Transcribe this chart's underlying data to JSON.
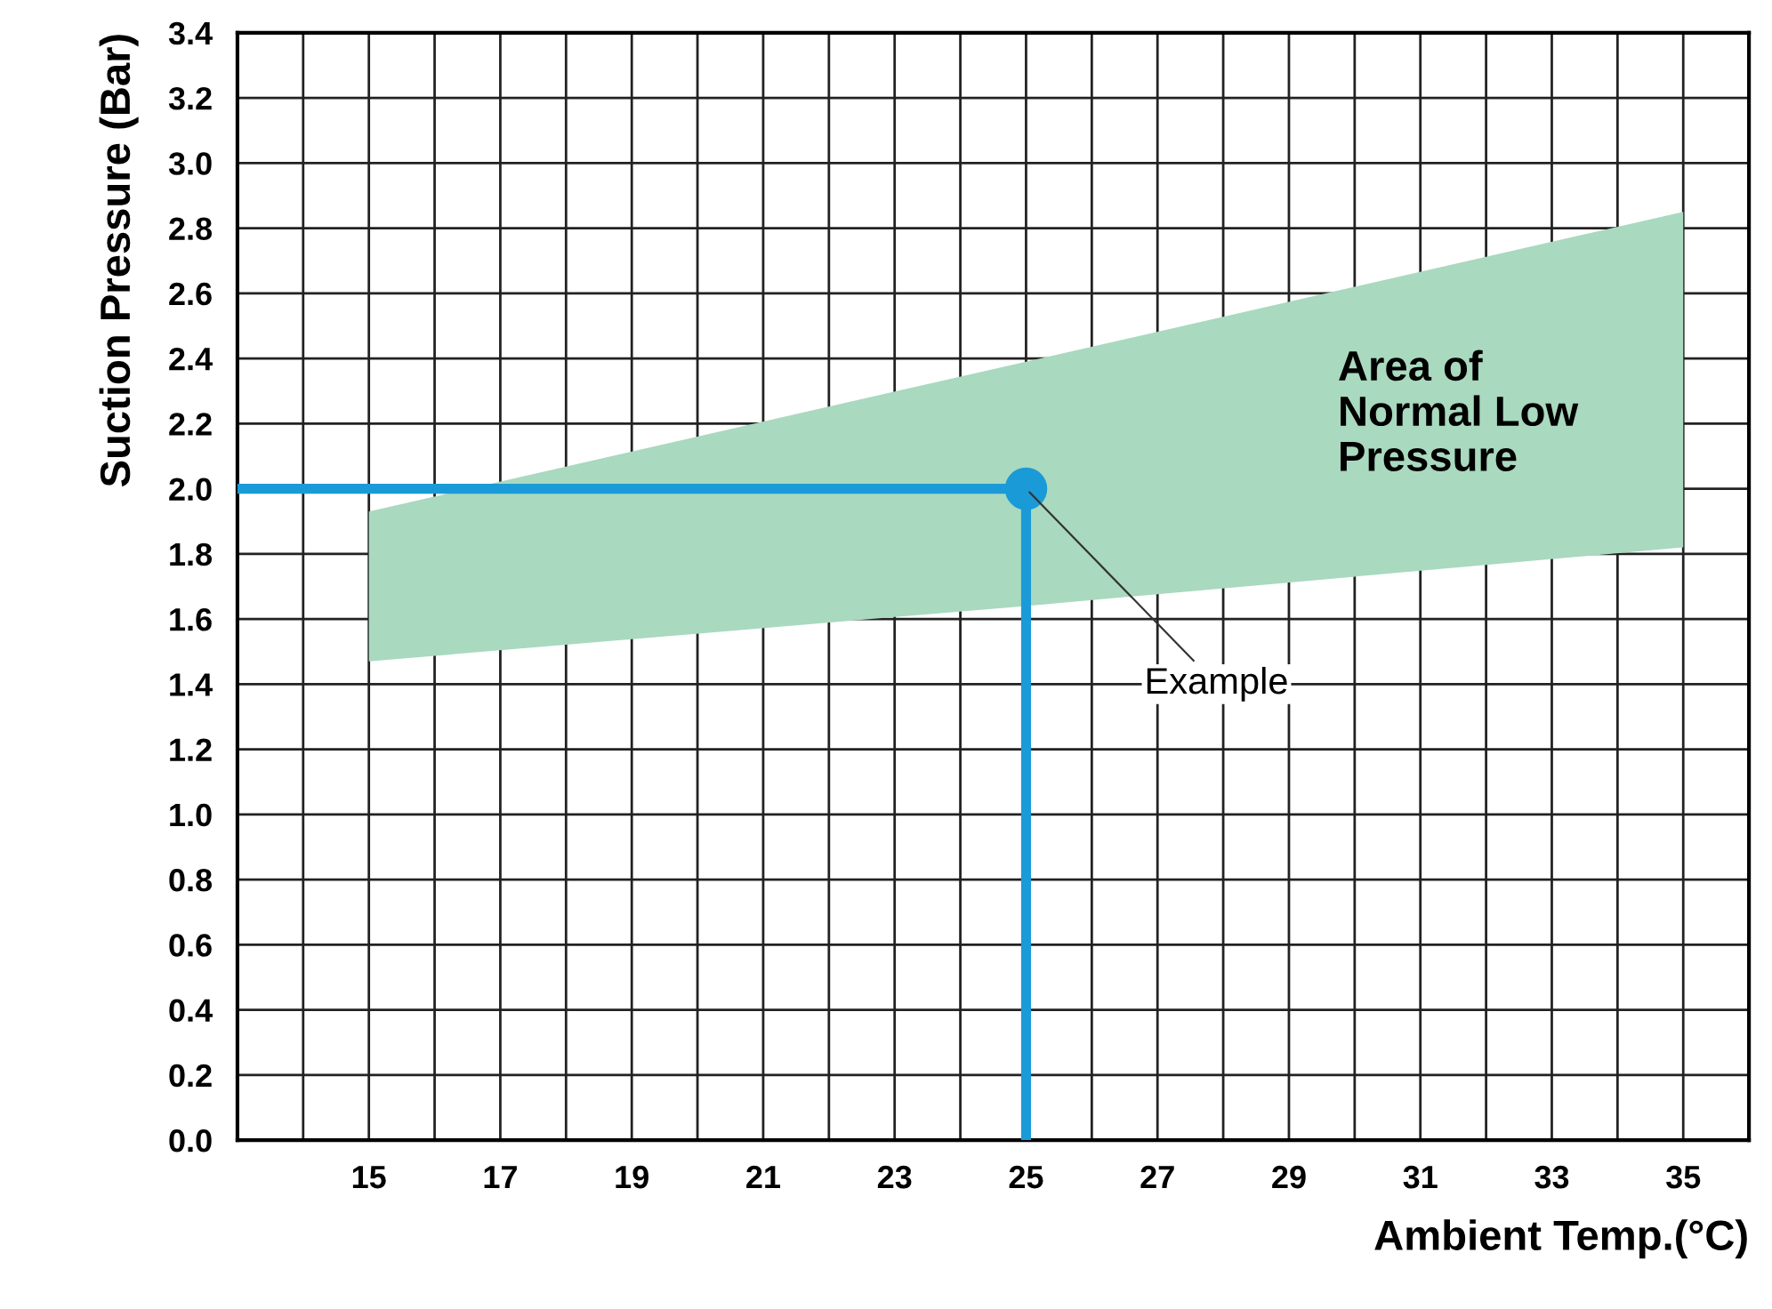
{
  "chart_data": {
    "type": "line",
    "xlabel": "Ambient Temp.(°C)",
    "ylabel": "Suction Pressure (Bar)",
    "xlim": [
      13,
      36
    ],
    "ylim": [
      0,
      3.4
    ],
    "xticks": [
      {
        "value": 14,
        "label": null
      },
      15,
      {
        "value": 16,
        "label": null
      },
      17,
      {
        "value": 18,
        "label": null
      },
      19,
      {
        "value": 20,
        "label": null
      },
      21,
      {
        "value": 22,
        "label": null
      },
      23,
      {
        "value": 24,
        "label": null
      },
      25,
      {
        "value": 26,
        "label": null
      },
      27,
      {
        "value": 28,
        "label": null
      },
      29,
      {
        "value": 30,
        "label": null
      },
      31,
      {
        "value": 32,
        "label": null
      },
      33,
      {
        "value": 34,
        "label": null
      },
      35,
      {
        "value": 36,
        "label": null
      }
    ],
    "yticks": [
      {
        "value": 0,
        "label": "0.0"
      },
      {
        "value": 0.2,
        "label": "0.2"
      },
      {
        "value": 0.4,
        "label": "0.4"
      },
      {
        "value": 0.6,
        "label": "0.6"
      },
      {
        "value": 0.8,
        "label": "0.8"
      },
      {
        "value": 1,
        "label": "1.0"
      },
      {
        "value": 1.2,
        "label": "1.2"
      },
      {
        "value": 1.4,
        "label": "1.4"
      },
      {
        "value": 1.6,
        "label": "1.6"
      },
      {
        "value": 1.8,
        "label": "1.8"
      },
      {
        "value": 2,
        "label": "2.0"
      },
      {
        "value": 2.2,
        "label": "2.2"
      },
      {
        "value": 2.4,
        "label": "2.4"
      },
      {
        "value": 2.6,
        "label": "2.6"
      },
      {
        "value": 2.8,
        "label": "2.8"
      },
      {
        "value": 3,
        "label": "3.0"
      },
      {
        "value": 3.2,
        "label": "3.2"
      },
      {
        "value": 3.4,
        "label": "3.4"
      }
    ],
    "grid": true,
    "series": [
      {
        "type": "area",
        "color": "#a9d9be",
        "x": [
          15,
          25,
          35
        ],
        "values": [
          null,
          null,
          null
        ],
        "lower": [
          1.47,
          1.64,
          1.82
        ],
        "upper": [
          1.93,
          2.39,
          2.85
        ]
      },
      {
        "color": "#1b9ad8",
        "x": [
          13,
          25,
          25
        ],
        "values": [
          2.0,
          2.0,
          0.0
        ],
        "marker": "none"
      },
      {
        "type": "scatter",
        "color": "#1b9ad8",
        "x": [
          25
        ],
        "values": [
          2.0
        ],
        "marker": "circle"
      }
    ],
    "annotations": [
      "Area of\nNormal Low\nPressure",
      {
        "text": "Example",
        "x": 25,
        "y": 2.0
      }
    ]
  }
}
